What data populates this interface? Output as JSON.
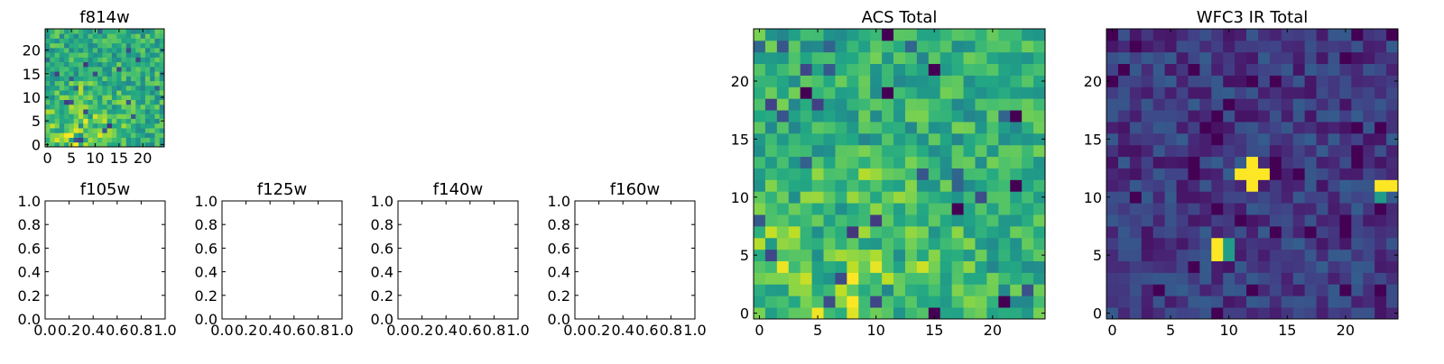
{
  "chart_data": [
    {
      "type": "heatmap",
      "title": "f814w",
      "grid_size": 25,
      "colormap": "viridis",
      "xlim": [
        -0.5,
        24.5
      ],
      "ylim": [
        -0.5,
        24.5
      ],
      "xticks": [
        0,
        5,
        10,
        15,
        20
      ],
      "yticks": [
        0,
        5,
        10,
        15,
        20
      ],
      "pattern": "noise-bright-lower-left"
    },
    {
      "type": "empty",
      "title": "f105w",
      "xlim": [
        0,
        1
      ],
      "ylim": [
        0,
        1
      ],
      "xticks": [
        "0.0",
        "0.2",
        "0.4",
        "0.6",
        "0.8",
        "1.0"
      ],
      "yticks": [
        "0.0",
        "0.2",
        "0.4",
        "0.6",
        "0.8",
        "1.0"
      ]
    },
    {
      "type": "empty",
      "title": "f125w",
      "xlim": [
        0,
        1
      ],
      "ylim": [
        0,
        1
      ],
      "xticks": [
        "0.0",
        "0.2",
        "0.4",
        "0.6",
        "0.8",
        "1.0"
      ],
      "yticks": [
        "0.0",
        "0.2",
        "0.4",
        "0.6",
        "0.8",
        "1.0"
      ]
    },
    {
      "type": "empty",
      "title": "f140w",
      "xlim": [
        0,
        1
      ],
      "ylim": [
        0,
        1
      ],
      "xticks": [
        "0.0",
        "0.2",
        "0.4",
        "0.6",
        "0.8",
        "1.0"
      ],
      "yticks": [
        "0.0",
        "0.2",
        "0.4",
        "0.6",
        "0.8",
        "1.0"
      ]
    },
    {
      "type": "empty",
      "title": "f160w",
      "xlim": [
        0,
        1
      ],
      "ylim": [
        0,
        1
      ],
      "xticks": [
        "0.0",
        "0.2",
        "0.4",
        "0.6",
        "0.8",
        "1.0"
      ],
      "yticks": [
        "0.0",
        "0.2",
        "0.4",
        "0.6",
        "0.8",
        "1.0"
      ]
    },
    {
      "type": "heatmap",
      "title": "ACS Total",
      "grid_size": 25,
      "colormap": "viridis",
      "xlim": [
        -0.5,
        24.5
      ],
      "ylim": [
        -0.5,
        24.5
      ],
      "xticks": [
        0,
        5,
        10,
        15,
        20
      ],
      "yticks": [
        0,
        5,
        10,
        15,
        20
      ],
      "pattern": "noise-bright-lower-left",
      "dark_pixels": [
        [
          11,
          24
        ],
        [
          15,
          21
        ],
        [
          4,
          19
        ],
        [
          11,
          19
        ],
        [
          22,
          17
        ],
        [
          17,
          9
        ],
        [
          22,
          11
        ],
        [
          15,
          0
        ],
        [
          21,
          1
        ]
      ]
    },
    {
      "type": "heatmap",
      "title": "WFC3 IR Total",
      "grid_size": 25,
      "colormap": "viridis",
      "xlim": [
        -0.5,
        24.5
      ],
      "ylim": [
        -0.5,
        24.5
      ],
      "xticks": [
        0,
        5,
        10,
        15,
        20
      ],
      "yticks": [
        0,
        5,
        10,
        15,
        20
      ],
      "pattern": "dark-background",
      "bright_pixels": [
        [
          12,
          12
        ],
        [
          11,
          12
        ],
        [
          13,
          12
        ],
        [
          12,
          13
        ],
        [
          12,
          11
        ],
        [
          9,
          5
        ],
        [
          9,
          6
        ],
        [
          23,
          11
        ],
        [
          24,
          11
        ]
      ],
      "mid_pixels": [
        [
          10,
          5
        ],
        [
          10,
          6
        ],
        [
          23,
          10
        ]
      ]
    }
  ]
}
